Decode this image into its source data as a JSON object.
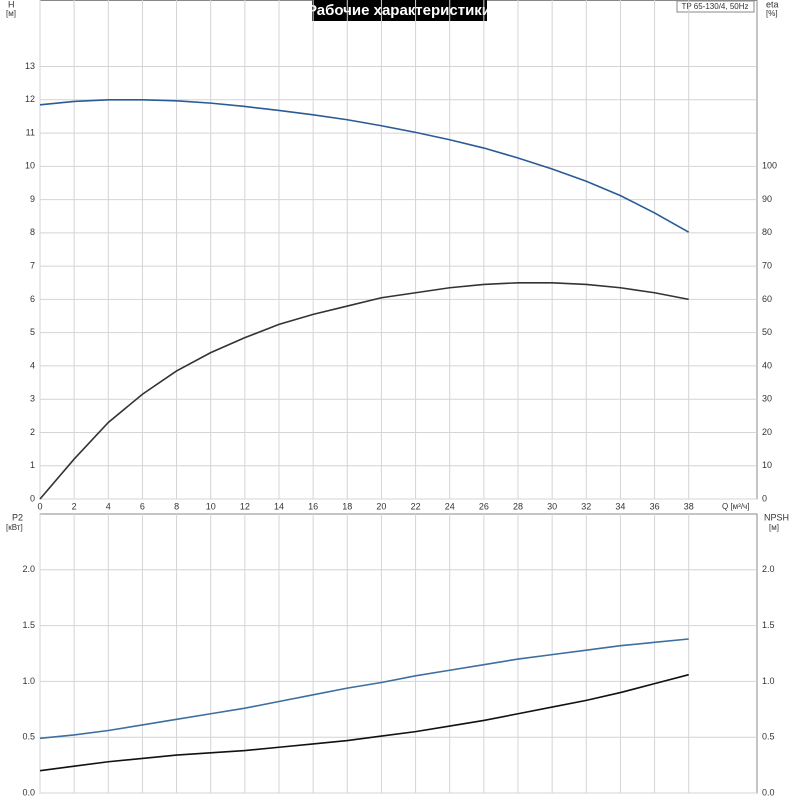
{
  "chart_data": [
    {
      "type": "line",
      "title": "Рабочие характеристики",
      "annotation": "TP 65-130/4, 50Hz",
      "ylabel": "H",
      "yunit": "[м]",
      "y2label": "eta",
      "y2unit": "[%]",
      "xlabel": "Q [м³/ч]",
      "x": [
        0,
        2,
        4,
        6,
        8,
        10,
        12,
        14,
        16,
        18,
        20,
        22,
        24,
        26,
        28,
        30,
        32,
        34,
        36,
        38
      ],
      "xlim": [
        0,
        42
      ],
      "xticks": [
        0,
        2,
        4,
        6,
        8,
        10,
        12,
        14,
        16,
        18,
        20,
        22,
        24,
        26,
        28,
        30,
        32,
        34,
        36,
        38
      ],
      "ylim": [
        0,
        15
      ],
      "yticks": [
        0,
        1,
        2,
        3,
        4,
        5,
        6,
        7,
        8,
        9,
        10,
        11,
        12,
        13
      ],
      "y2lim": [
        0,
        150
      ],
      "y2ticks": [
        0,
        10,
        20,
        30,
        40,
        50,
        60,
        70,
        80,
        90,
        100
      ],
      "grid": true,
      "series": [
        {
          "color": "#2a5b96",
          "values": [
            11.85,
            11.95,
            12.0,
            12.0,
            11.97,
            11.9,
            11.8,
            11.68,
            11.55,
            11.4,
            11.22,
            11.02,
            10.8,
            10.55,
            10.25,
            9.92,
            9.55,
            9.12,
            8.6,
            8.02
          ]
        },
        {
          "color": "#333333",
          "axis": "y2",
          "values": [
            0,
            12,
            23,
            31.5,
            38.5,
            44,
            48.5,
            52.5,
            55.5,
            58,
            60.5,
            62,
            63.5,
            64.5,
            65,
            65,
            64.5,
            63.5,
            62,
            60
          ]
        }
      ]
    },
    {
      "type": "line",
      "ylabel": "P2",
      "yunit": "[кВт]",
      "y2label": "NPSH",
      "y2unit": "[м]",
      "x": [
        0,
        2,
        4,
        6,
        8,
        10,
        12,
        14,
        16,
        18,
        20,
        22,
        24,
        26,
        28,
        30,
        32,
        34,
        36,
        38
      ],
      "xlim": [
        0,
        42
      ],
      "ylim": [
        0,
        2.5
      ],
      "yticks": [
        {
          "value": 0,
          "label": "0.0"
        },
        0.5,
        {
          "value": 1,
          "label": "1.0"
        },
        1.5,
        {
          "value": 2,
          "label": "2.0"
        }
      ],
      "y2lim": [
        0,
        2.5
      ],
      "y2ticks": [
        {
          "value": 0,
          "label": "0.0"
        },
        0.5,
        {
          "value": 1,
          "label": "1.0"
        },
        1.5,
        {
          "value": 2,
          "label": "2.0"
        }
      ],
      "grid": true,
      "series": [
        {
          "color": "#3d6fa0",
          "values": [
            0.49,
            0.52,
            0.56,
            0.61,
            0.66,
            0.71,
            0.76,
            0.82,
            0.88,
            0.94,
            0.99,
            1.05,
            1.1,
            1.15,
            1.2,
            1.24,
            1.28,
            1.32,
            1.35,
            1.38
          ]
        },
        {
          "color": "#111111",
          "axis": "y2",
          "values": [
            0.2,
            0.24,
            0.28,
            0.31,
            0.34,
            0.36,
            0.38,
            0.41,
            0.44,
            0.47,
            0.51,
            0.55,
            0.6,
            0.65,
            0.71,
            0.77,
            0.83,
            0.9,
            0.98,
            1.06
          ]
        }
      ]
    }
  ]
}
